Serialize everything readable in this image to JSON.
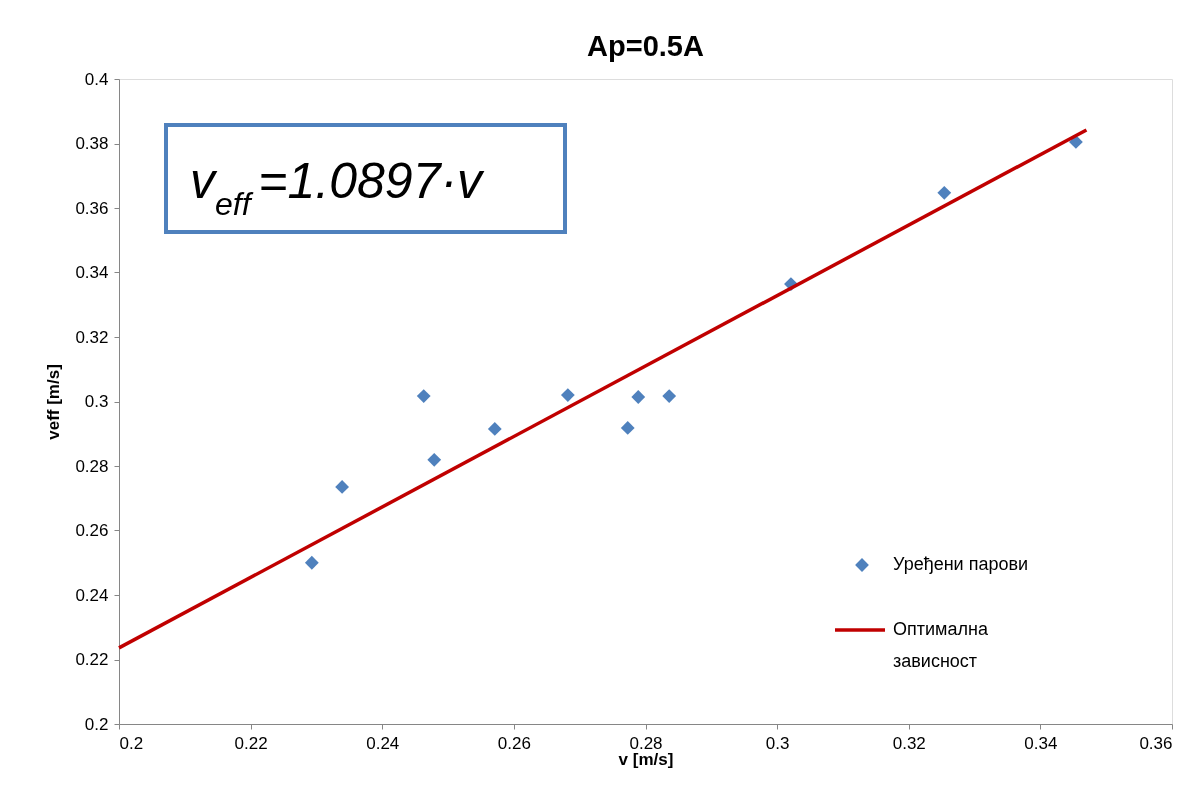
{
  "chart_data": {
    "type": "scatter",
    "title": "Ap=0.5A",
    "xlabel": "v [m/s]",
    "ylabel": "veff [m/s]",
    "xlim": [
      0.2,
      0.36
    ],
    "xticks": [
      0.2,
      0.22,
      0.24,
      0.26,
      0.28,
      0.3,
      0.32,
      0.34,
      0.36
    ],
    "ylim": [
      0.2,
      0.4
    ],
    "yticks": [
      0.2,
      0.22,
      0.24,
      0.26,
      0.28,
      0.3,
      0.32,
      0.34,
      0.36,
      0.38,
      0.4
    ],
    "grid": false,
    "legend": "right",
    "annotations": [
      "v$_{eff}$=1.0897·v"
    ],
    "series": [
      {
        "name": "Уређени парови",
        "marker": "diamond",
        "color": "#4f81bd",
        "x": [
          0.2293,
          0.2339,
          0.2463,
          0.2479,
          0.2571,
          0.2682,
          0.2773,
          0.2789,
          0.2836,
          0.3021,
          0.3254,
          0.3454
        ],
        "values": [
          0.25,
          0.2735,
          0.3017,
          0.2819,
          0.2915,
          0.302,
          0.2918,
          0.3014,
          0.3017,
          0.3364,
          0.3647,
          0.3805
        ]
      },
      {
        "name": "Оптимална зависност",
        "type": "line",
        "color": "#c00000",
        "x": [
          0.2,
          0.347
        ],
        "values": [
          0.2236,
          0.3842
        ]
      }
    ]
  }
}
